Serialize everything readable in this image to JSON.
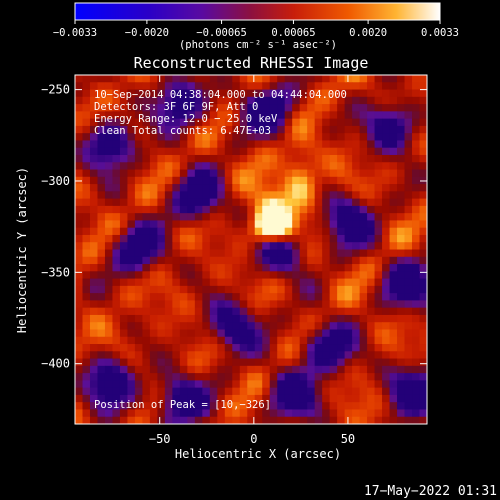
{
  "chart_data": {
    "type": "heatmap",
    "title": "Reconstructed RHESSI Image",
    "xlabel": "Heliocentric X (arcsec)",
    "ylabel": "Heliocentric Y (arcsec)",
    "xlim": [
      -95,
      92
    ],
    "ylim": [
      -433,
      -242
    ],
    "x_ticks": [
      -50,
      0,
      50
    ],
    "x_tick_labels": [
      "−50",
      "0",
      "50"
    ],
    "y_ticks": [
      -250,
      -300,
      -350,
      -400
    ],
    "y_tick_labels": [
      "−250",
      "−300",
      "−350",
      "−400"
    ],
    "colorbar": {
      "min": -0.0033,
      "max": 0.0033,
      "ticks": [
        -0.0033,
        -0.002,
        -0.00065,
        0.00065,
        0.002,
        0.0033
      ],
      "tick_labels": [
        "−0.0033",
        "−0.0020",
        "−0.00065",
        "0.00065",
        "0.0020",
        "0.0033"
      ],
      "unit_label": "(photons cm⁻² s⁻¹ asec⁻²)"
    },
    "annotations": [
      "10−Sep−2014 04:38:04.000 to 04:44:04.000",
      "Detectors: 3F 6F 9F, Att 0",
      "Energy Range: 12.0 − 25.0 keV",
      "Clean    Total counts: 6.47E+03"
    ],
    "peak_label": "Position of Peak = [10,−326]",
    "peak": {
      "x": 10,
      "y": -326
    },
    "image_grid": {
      "nx": 47,
      "ny": 48
    }
  },
  "footer": {
    "timestamp": "17−May−2022 01:31"
  }
}
